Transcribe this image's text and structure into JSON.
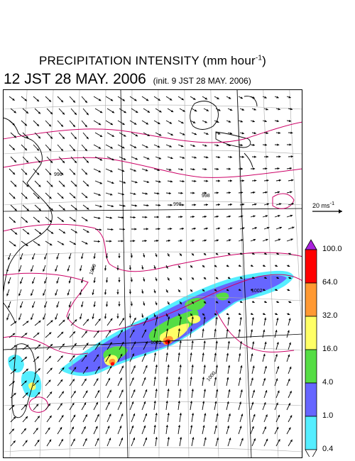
{
  "title": {
    "main": "PRECIPITATION INTENSITY (mm hour",
    "unit_exponent": "-1",
    "close": ")"
  },
  "subtitle": {
    "valid_time": "12 JST 28 MAY. 2006",
    "init_time": "(init. 9 JST 28 MAY. 2006)"
  },
  "reference_vector": {
    "label": "20 ms",
    "exponent": "-1",
    "speed_ms": 20
  },
  "colorbar": {
    "unit": "mm hour-1",
    "levels": [
      "0.4",
      "1.0",
      "4.0",
      "16.0",
      "32.0",
      "64.0",
      "100.0"
    ],
    "colors": [
      "#55eeff",
      "#6666ff",
      "#55dd44",
      "#ffff66",
      "#ff9933",
      "#ff0000"
    ],
    "under_color": "#ffffff",
    "over_color": "#aa22dd"
  },
  "pressure_contours": {
    "color": "#cc0066",
    "labels": [
      "996",
      "998",
      "1000",
      "1002",
      "1002",
      "1000",
      "998"
    ]
  },
  "colors": {
    "wind_arrow": "#000000",
    "coastline": "#000000",
    "graticule": "#aaaaaa",
    "frame": "#000000"
  }
}
